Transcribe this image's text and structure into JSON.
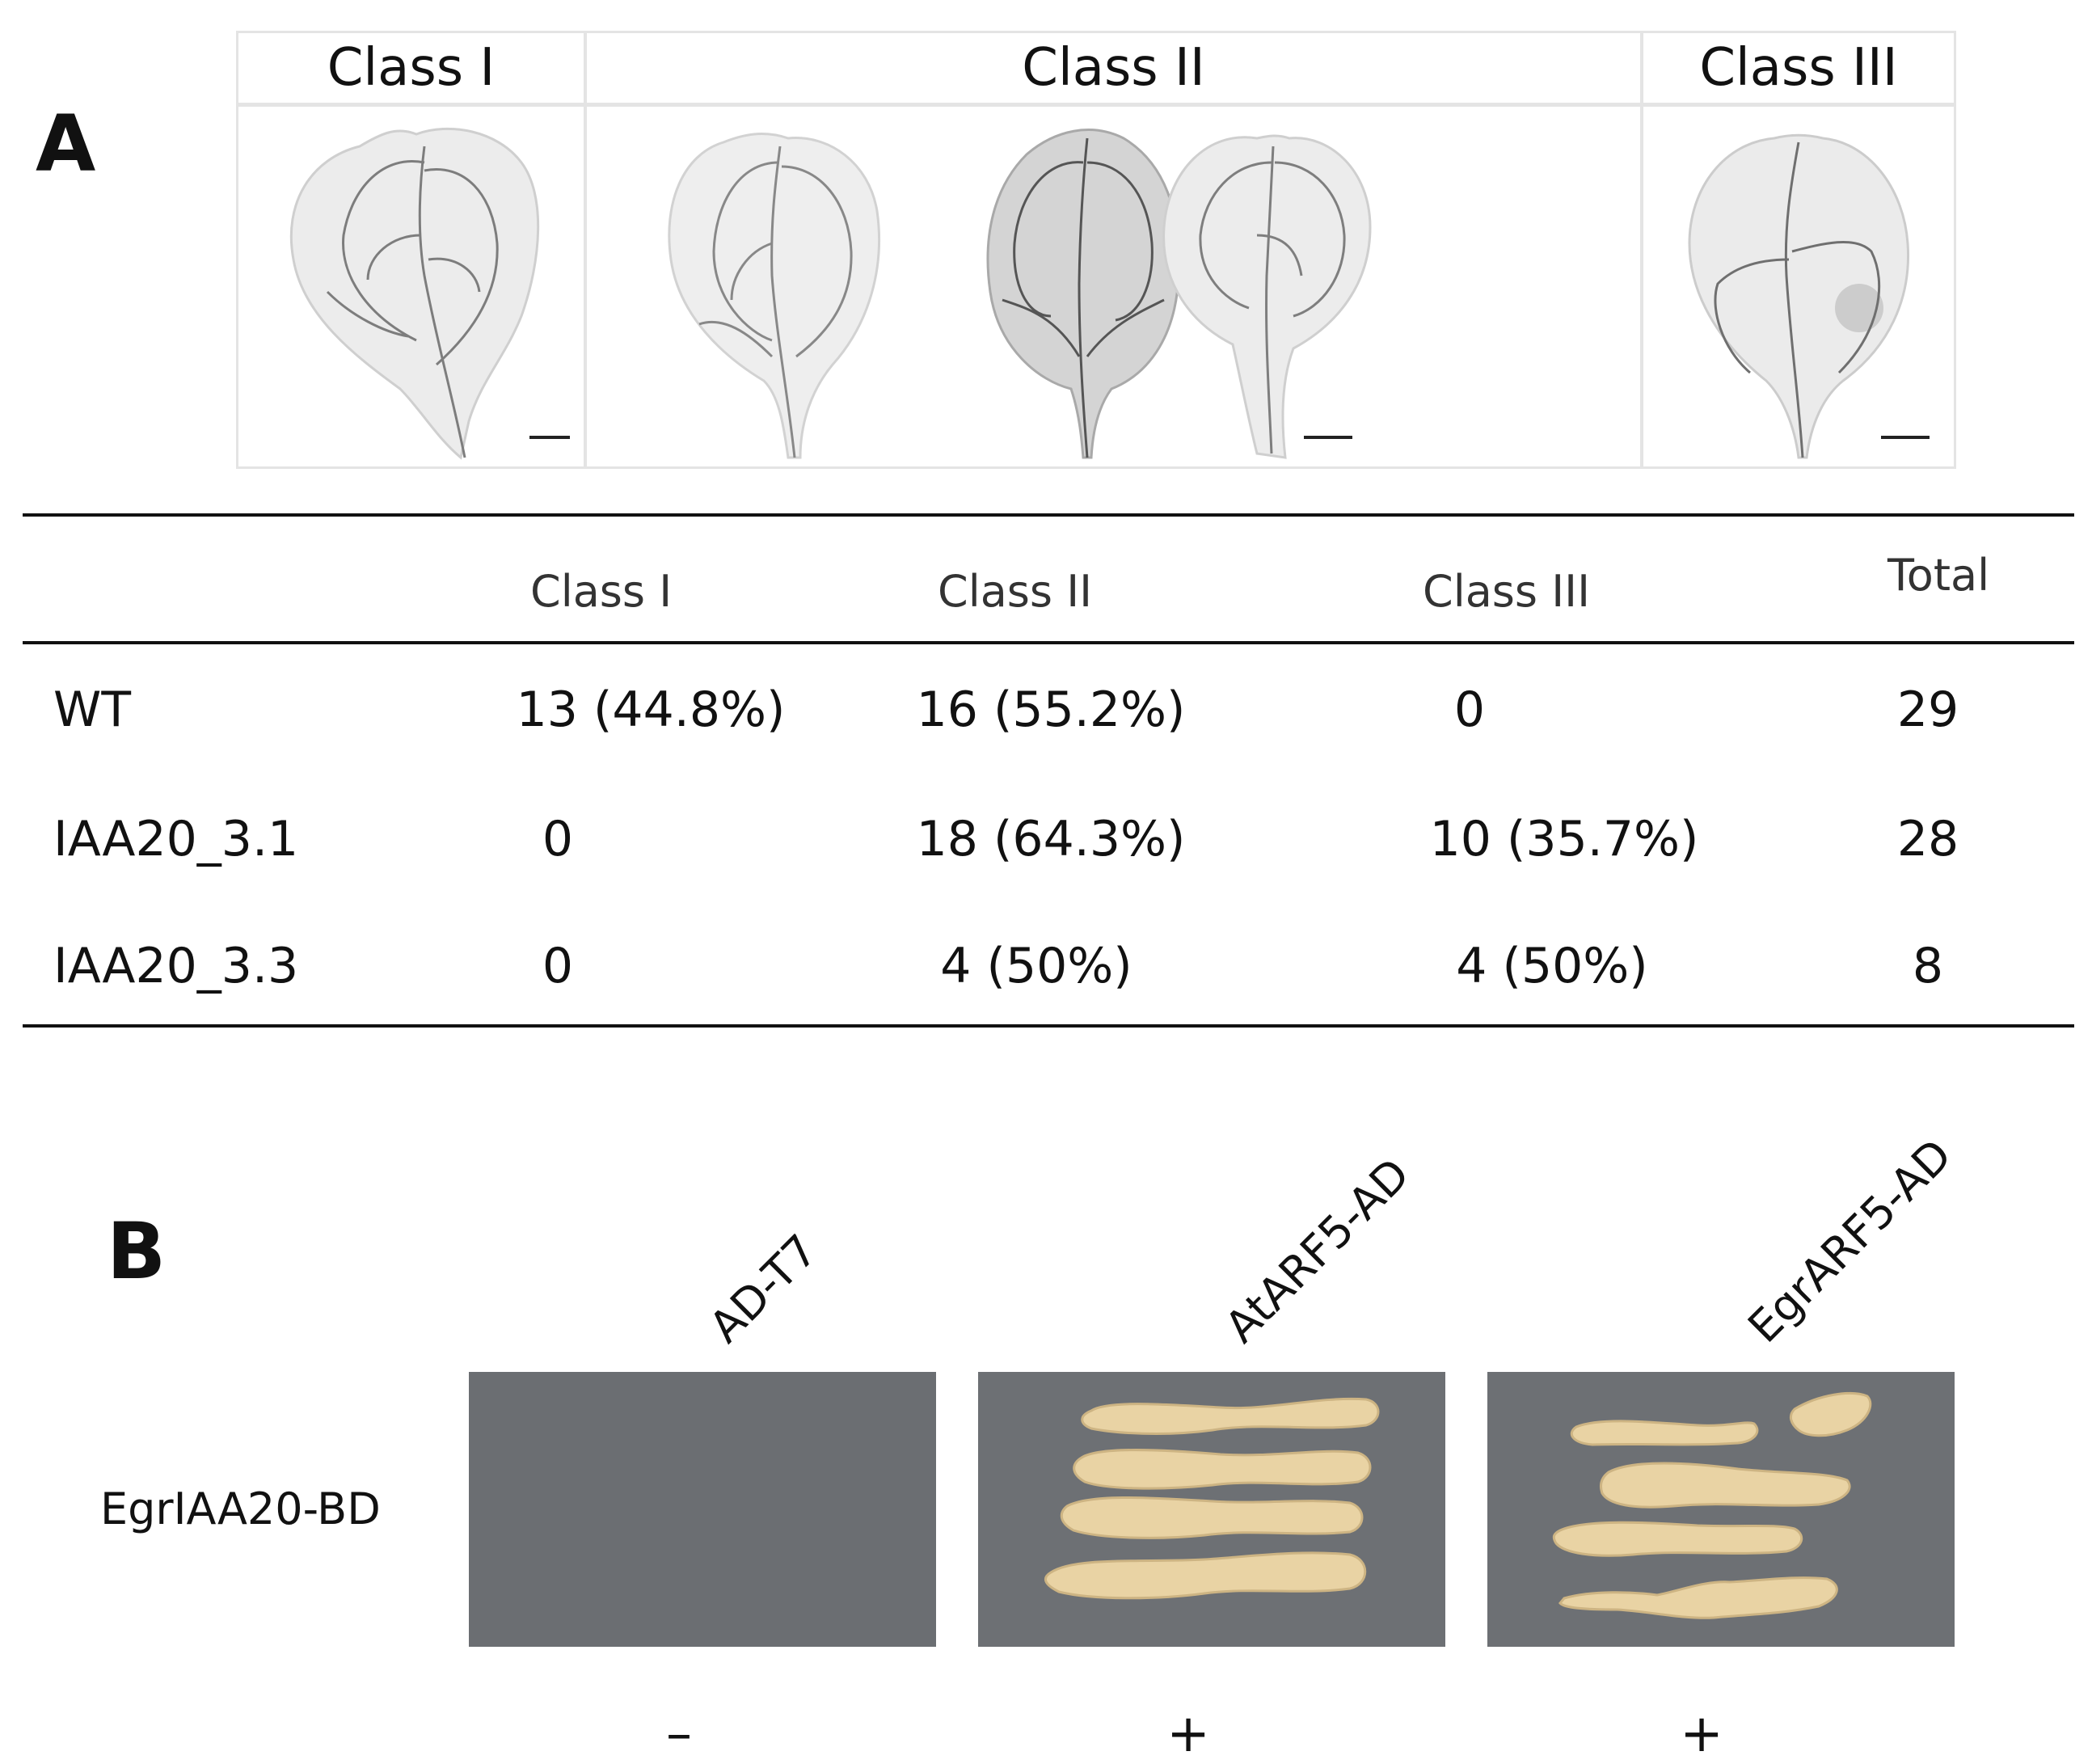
{
  "panel_a": {
    "letter": "A",
    "image_headers": [
      "Class I",
      "Class II",
      "Class III"
    ],
    "table": {
      "columns": [
        "Class I",
        "Class II",
        "Class III",
        "Total"
      ],
      "rows": [
        {
          "label": "WT",
          "values": [
            "13 (44.8%)",
            "16 (55.2%)",
            "0",
            "29"
          ]
        },
        {
          "label": "IAA20_3.1",
          "values": [
            "0",
            "18 (64.3%)",
            "10 (35.7%)",
            "28"
          ]
        },
        {
          "label": "IAA20_3.3",
          "values": [
            "0",
            "4 (50%)",
            "4 (50%)",
            "8"
          ]
        }
      ]
    }
  },
  "panel_b": {
    "letter": "B",
    "row_label": "EgrIAA20-BD",
    "plates": [
      {
        "label": "AD-T7",
        "result": "–",
        "growth": false
      },
      {
        "label": "AtARF5-AD",
        "result": "+",
        "growth": true
      },
      {
        "label": "EgrARF5-AD",
        "result": "+",
        "growth": true
      }
    ]
  }
}
